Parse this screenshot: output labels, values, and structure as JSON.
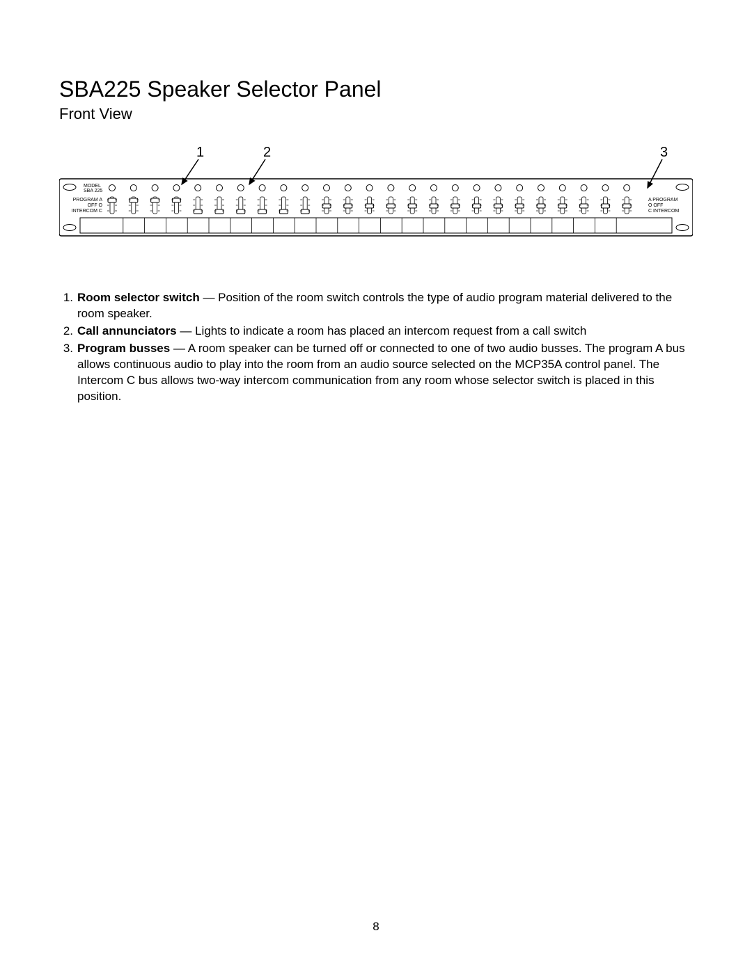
{
  "title": "SBA225 Speaker Selector Panel",
  "subtitle": "Front View",
  "page_number": "8",
  "diagram": {
    "model_line1": "MODEL",
    "model_line2": "SBA 225",
    "left_label_a": "PROGRAM A",
    "left_label_o": "OFF O",
    "left_label_c": "INTERCOM C",
    "right_label_a": "A PROGRAM",
    "right_label_o": "O OFF",
    "right_label_c": "C INTERCOM",
    "callouts": [
      "1",
      "2",
      "3"
    ],
    "channel_count": 25,
    "colors": {
      "stroke": "#000000",
      "bg": "#ffffff"
    }
  },
  "descriptions": [
    {
      "num": "1.",
      "term": "Room selector switch",
      "text": " — Position of the room switch controls the type of audio program material delivered to the room speaker."
    },
    {
      "num": "2.",
      "term": "Call annunciators",
      "text": " — Lights to indicate a room has placed an intercom request from a call switch"
    },
    {
      "num": "3.",
      "term": "Program busses",
      "text": " — A room speaker can be turned off or connected to one of two audio busses. The program A bus allows continuous audio to play into the room from an audio source selected on the MCP35A control panel. The Intercom C bus allows two-way intercom communication from any room whose selector switch is placed in this position."
    }
  ]
}
